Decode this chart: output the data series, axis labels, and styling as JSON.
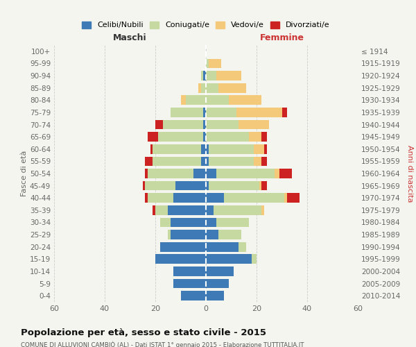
{
  "age_groups": [
    "0-4",
    "5-9",
    "10-14",
    "15-19",
    "20-24",
    "25-29",
    "30-34",
    "35-39",
    "40-44",
    "45-49",
    "50-54",
    "55-59",
    "60-64",
    "65-69",
    "70-74",
    "75-79",
    "80-84",
    "85-89",
    "90-94",
    "95-99",
    "100+"
  ],
  "birth_years": [
    "2010-2014",
    "2005-2009",
    "2000-2004",
    "1995-1999",
    "1990-1994",
    "1985-1989",
    "1980-1984",
    "1975-1979",
    "1970-1974",
    "1965-1969",
    "1960-1964",
    "1955-1959",
    "1950-1954",
    "1945-1949",
    "1940-1944",
    "1935-1939",
    "1930-1934",
    "1925-1929",
    "1920-1924",
    "1915-1919",
    "≤ 1914"
  ],
  "males": {
    "celibi": [
      10,
      13,
      13,
      20,
      18,
      14,
      14,
      15,
      13,
      12,
      5,
      2,
      2,
      1,
      1,
      1,
      0,
      0,
      1,
      0,
      0
    ],
    "coniugati": [
      0,
      0,
      0,
      0,
      0,
      1,
      4,
      5,
      10,
      12,
      18,
      19,
      19,
      18,
      16,
      13,
      8,
      2,
      1,
      0,
      0
    ],
    "vedovi": [
      0,
      0,
      0,
      0,
      0,
      0,
      0,
      0,
      0,
      0,
      0,
      0,
      0,
      0,
      0,
      0,
      2,
      1,
      0,
      0,
      0
    ],
    "divorziati": [
      0,
      0,
      0,
      0,
      0,
      0,
      0,
      1,
      1,
      1,
      1,
      3,
      1,
      4,
      3,
      0,
      0,
      0,
      0,
      0,
      0
    ]
  },
  "females": {
    "nubili": [
      7,
      9,
      11,
      18,
      13,
      5,
      4,
      3,
      7,
      1,
      4,
      1,
      1,
      0,
      0,
      0,
      0,
      0,
      0,
      0,
      0
    ],
    "coniugate": [
      0,
      0,
      0,
      2,
      3,
      9,
      13,
      19,
      24,
      20,
      23,
      18,
      18,
      17,
      13,
      12,
      9,
      5,
      4,
      1,
      0
    ],
    "vedove": [
      0,
      0,
      0,
      0,
      0,
      0,
      0,
      1,
      1,
      1,
      2,
      3,
      4,
      5,
      12,
      18,
      13,
      11,
      10,
      5,
      0
    ],
    "divorziate": [
      0,
      0,
      0,
      0,
      0,
      0,
      0,
      0,
      5,
      2,
      5,
      2,
      1,
      2,
      0,
      2,
      0,
      0,
      0,
      0,
      0
    ]
  },
  "colors": {
    "celibi_nubili": "#3e7bb6",
    "coniugati_e": "#c5d9a0",
    "vedovi_e": "#f5c97a",
    "divorziati_e": "#cc2222"
  },
  "xlim": 60,
  "title": "Popolazione per età, sesso e stato civile - 2015",
  "subtitle": "COMUNE DI ALLUVIONI CAMBIÒ (AL) - Dati ISTAT 1° gennaio 2015 - Elaborazione TUTTITALIA.IT",
  "xlabel_left": "Maschi",
  "xlabel_right": "Femmine",
  "ylabel_left": "Fasce di età",
  "ylabel_right": "Anni di nascita",
  "legend_labels": [
    "Celibi/Nubili",
    "Coniugati/e",
    "Vedovi/e",
    "Divorziati/e"
  ],
  "bg_color": "#f5f5f0"
}
